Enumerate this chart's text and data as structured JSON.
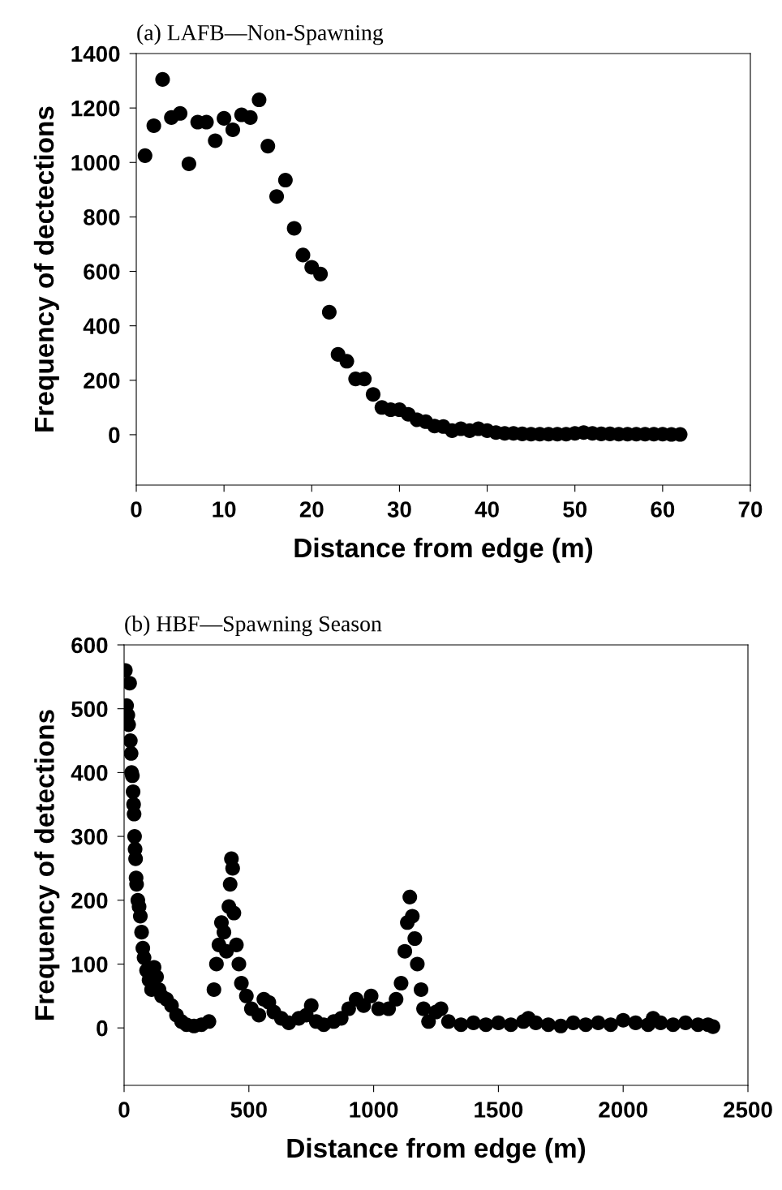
{
  "chart_data": [
    {
      "type": "scatter",
      "title": "(a) LAFB—Non-Spawning",
      "xlabel": "Distance from edge (m)",
      "ylabel": "Frequency of dectections",
      "xlim": [
        0,
        70
      ],
      "xticks": [
        0,
        10,
        20,
        30,
        40,
        50,
        60,
        70
      ],
      "ylim": [
        -185,
        1400
      ],
      "yticks": [
        0,
        200,
        400,
        600,
        800,
        1000,
        1200,
        1400
      ],
      "grid": false,
      "marker": "circle",
      "series": [
        {
          "color": "#000000",
          "x": [
            1,
            2,
            3,
            4,
            5,
            6,
            7,
            8,
            9,
            10,
            11,
            12,
            13,
            14,
            15,
            16,
            17,
            18,
            19,
            20,
            21,
            22,
            23,
            24,
            25,
            26,
            27,
            28,
            29,
            30,
            31,
            32,
            33,
            34,
            35,
            36,
            37,
            38,
            39,
            40,
            41,
            42,
            43,
            44,
            45,
            46,
            47,
            48,
            49,
            50,
            51,
            52,
            53,
            54,
            55,
            56,
            57,
            58,
            59,
            60,
            61,
            62
          ],
          "values": [
            1025,
            1135,
            1305,
            1165,
            1180,
            995,
            1148,
            1148,
            1080,
            1162,
            1120,
            1175,
            1165,
            1230,
            1060,
            875,
            935,
            758,
            660,
            615,
            590,
            450,
            295,
            270,
            205,
            205,
            148,
            100,
            92,
            92,
            75,
            55,
            48,
            32,
            30,
            15,
            22,
            15,
            22,
            15,
            8,
            5,
            5,
            3,
            2,
            2,
            2,
            2,
            2,
            5,
            8,
            5,
            3,
            3,
            2,
            2,
            2,
            2,
            2,
            2,
            1,
            1
          ]
        }
      ]
    },
    {
      "type": "scatter",
      "title": "(b) HBF—Spawning Season",
      "xlabel": "Distance from edge (m)",
      "ylabel": "Frequency of detections",
      "xlim": [
        0,
        2500
      ],
      "xticks": [
        0,
        500,
        1000,
        1500,
        2000,
        2500
      ],
      "ylim": [
        -90,
        600
      ],
      "yticks": [
        0,
        100,
        200,
        300,
        400,
        500,
        600
      ],
      "grid": false,
      "marker": "circle",
      "series": [
        {
          "color": "#000000",
          "x": [
            5,
            10,
            15,
            18,
            22,
            25,
            28,
            30,
            33,
            36,
            38,
            40,
            42,
            44,
            46,
            48,
            50,
            55,
            60,
            65,
            70,
            75,
            80,
            90,
            100,
            110,
            120,
            130,
            140,
            150,
            170,
            190,
            210,
            230,
            250,
            280,
            310,
            340,
            360,
            370,
            380,
            390,
            400,
            410,
            420,
            425,
            430,
            435,
            440,
            450,
            460,
            470,
            490,
            510,
            540,
            560,
            580,
            600,
            630,
            660,
            700,
            730,
            750,
            770,
            800,
            840,
            870,
            900,
            930,
            960,
            990,
            1020,
            1060,
            1090,
            1110,
            1125,
            1135,
            1145,
            1155,
            1165,
            1175,
            1190,
            1200,
            1220,
            1250,
            1270,
            1300,
            1350,
            1400,
            1450,
            1500,
            1550,
            1600,
            1620,
            1650,
            1700,
            1750,
            1800,
            1850,
            1900,
            1950,
            2000,
            2050,
            2100,
            2120,
            2150,
            2200,
            2250,
            2300,
            2340,
            2360
          ],
          "values": [
            560,
            505,
            490,
            475,
            540,
            450,
            430,
            400,
            395,
            370,
            350,
            335,
            300,
            280,
            265,
            235,
            225,
            200,
            190,
            175,
            150,
            125,
            110,
            90,
            75,
            60,
            95,
            80,
            60,
            50,
            45,
            35,
            20,
            10,
            5,
            3,
            5,
            10,
            60,
            100,
            130,
            165,
            150,
            120,
            190,
            225,
            265,
            250,
            180,
            130,
            100,
            70,
            50,
            30,
            20,
            45,
            40,
            25,
            15,
            8,
            15,
            20,
            35,
            10,
            5,
            10,
            15,
            30,
            45,
            35,
            50,
            30,
            30,
            45,
            70,
            120,
            165,
            205,
            175,
            140,
            100,
            60,
            30,
            10,
            25,
            30,
            10,
            5,
            8,
            5,
            8,
            5,
            10,
            15,
            8,
            5,
            3,
            8,
            5,
            8,
            5,
            12,
            8,
            5,
            15,
            8,
            5,
            8,
            5,
            5,
            2
          ]
        }
      ]
    }
  ]
}
